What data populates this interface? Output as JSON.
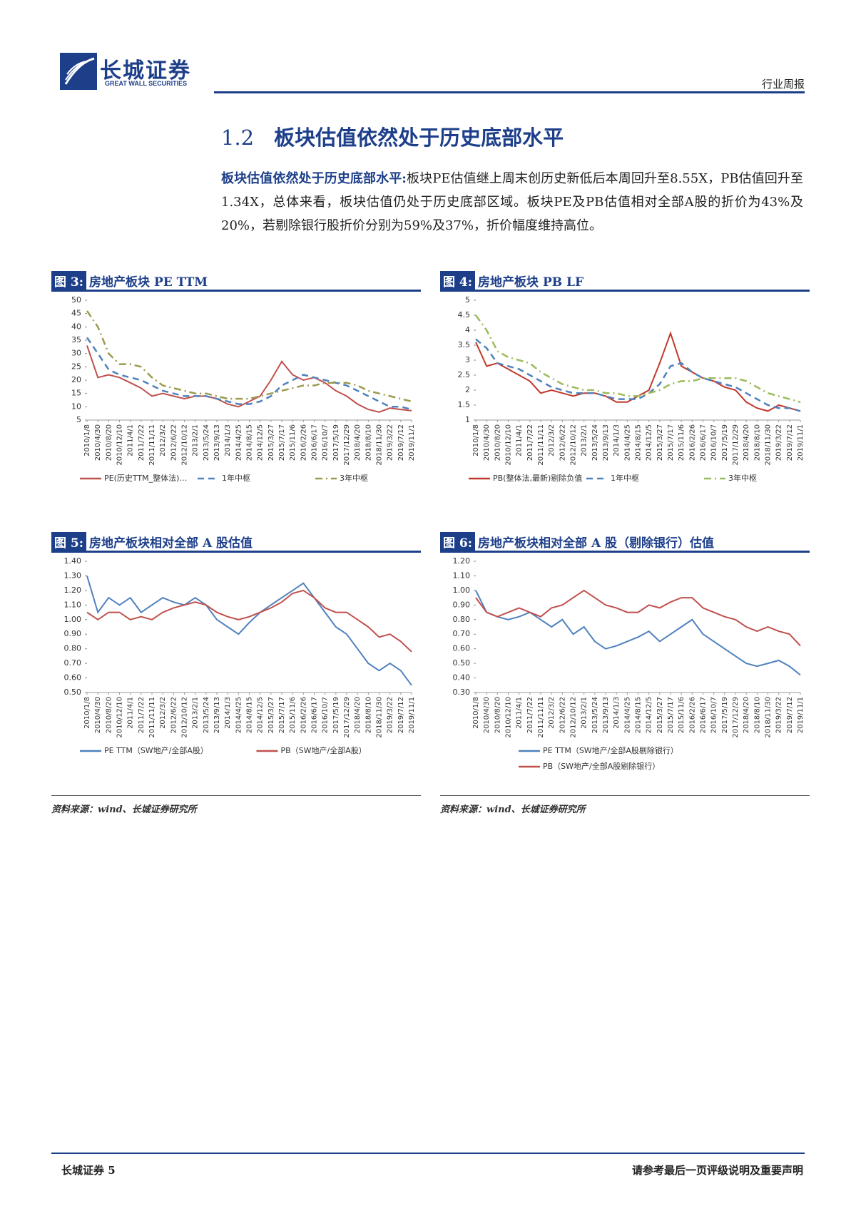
{
  "header": {
    "logo_cn": "长城证券",
    "logo_en": "GREAT WALL SECURITIES",
    "report_type": "行业周报"
  },
  "section": {
    "number": "1.2",
    "title": "板块估值依然处于历史底部水平"
  },
  "paragraph": {
    "lead": "板块估值依然处于历史底部水平:",
    "body": "板块PE估值继上周末创历史新低后本周回升至8.55X，PB估值回升至1.34X，总体来看，板块估值仍处于历史底部区域。板块PE及PB估值相对全部A股的折价为43%及20%，若剔除银行股折价分别为59%及37%，折价幅度维持高位。"
  },
  "chart_data": [
    {
      "type": "line",
      "label": "图 3:",
      "title": "房地产板块 PE TTM",
      "grid": false,
      "legend": "bottom",
      "categories": [
        "2010/1/8",
        "2010/4/30",
        "2010/8/20",
        "2010/12/10",
        "2011/4/1",
        "2011/7/22",
        "2011/11/11",
        "2012/3/2",
        "2012/6/22",
        "2012/10/12",
        "2013/2/1",
        "2013/5/24",
        "2013/9/13",
        "2014/1/3",
        "2014/4/25",
        "2014/8/15",
        "2014/12/5",
        "2015/3/27",
        "2015/7/17",
        "2015/11/6",
        "2016/2/26",
        "2016/6/17",
        "2016/10/7",
        "2017/5/19",
        "2017/12/29",
        "2018/4/20",
        "2018/8/10",
        "2018/11/30",
        "2019/3/22",
        "2019/7/12",
        "2019/11/1"
      ],
      "ylim": [
        5,
        50
      ],
      "yticks": [
        5,
        10,
        15,
        20,
        25,
        30,
        35,
        40,
        45,
        50
      ],
      "series": [
        {
          "name": "PE(历史TTM_整体法)…",
          "color": "#c0504d",
          "style": "solid",
          "values": [
            33,
            21,
            22,
            21,
            19,
            17,
            14,
            15,
            14,
            13,
            14,
            14,
            13,
            11,
            10,
            12,
            14,
            20,
            27,
            22,
            20,
            21,
            19,
            16,
            14,
            11,
            9,
            8,
            9.5,
            9,
            8.5
          ]
        },
        {
          "name": "1年中枢",
          "color": "#4f81bd",
          "style": "dashed",
          "values": [
            36,
            30,
            24,
            22,
            21,
            20,
            18,
            16,
            15,
            14,
            14,
            14,
            13,
            12,
            11,
            11,
            12,
            14,
            18,
            20,
            22,
            21,
            20,
            19,
            18,
            16,
            14,
            12,
            10,
            10,
            9
          ]
        },
        {
          "name": "3年中枢",
          "color": "#9c9b4e",
          "style": "dashdot",
          "values": [
            46,
            40,
            30,
            26,
            26,
            25,
            21,
            18,
            17,
            16,
            15,
            15,
            14,
            13,
            13,
            13,
            14,
            15,
            16,
            17,
            18,
            18,
            19,
            19,
            19,
            18,
            16,
            15,
            14,
            13,
            12
          ]
        }
      ]
    },
    {
      "type": "line",
      "label": "图 4:",
      "title": "房地产板块 PB LF",
      "grid": false,
      "legend": "bottom",
      "categories": [
        "2010/1/8",
        "2010/4/30",
        "2010/8/20",
        "2010/12/10",
        "2011/4/1",
        "2011/7/22",
        "2011/11/11",
        "2012/3/2",
        "2012/6/22",
        "2012/10/12",
        "2013/2/1",
        "2013/5/24",
        "2013/9/13",
        "2014/1/3",
        "2014/4/25",
        "2014/8/15",
        "2014/12/5",
        "2015/3/27",
        "2015/7/17",
        "2015/11/6",
        "2016/2/26",
        "2016/6/17",
        "2016/10/7",
        "2017/5/19",
        "2017/12/29",
        "2018/4/20",
        "2018/8/10",
        "2018/11/30",
        "2019/3/22",
        "2019/7/12",
        "2019/11/1"
      ],
      "ylim": [
        1,
        5
      ],
      "yticks": [
        1,
        1.5,
        2,
        2.5,
        3,
        3.5,
        4,
        4.5,
        5
      ],
      "series": [
        {
          "name": "PB(整体法,最新)剔除负值",
          "color": "#c0392b",
          "style": "solid",
          "values": [
            3.6,
            2.8,
            2.9,
            2.7,
            2.5,
            2.3,
            1.9,
            2.0,
            1.9,
            1.8,
            1.9,
            1.9,
            1.8,
            1.6,
            1.6,
            1.8,
            2.0,
            2.9,
            3.9,
            2.8,
            2.6,
            2.4,
            2.3,
            2.1,
            2.0,
            1.6,
            1.4,
            1.3,
            1.5,
            1.4,
            1.3
          ]
        },
        {
          "name": "1年中枢",
          "color": "#4f81bd",
          "style": "dashed",
          "values": [
            3.7,
            3.4,
            2.9,
            2.8,
            2.7,
            2.5,
            2.3,
            2.1,
            2.0,
            1.9,
            1.9,
            1.9,
            1.8,
            1.7,
            1.7,
            1.7,
            1.9,
            2.2,
            2.8,
            2.9,
            2.6,
            2.4,
            2.3,
            2.2,
            2.1,
            1.9,
            1.7,
            1.5,
            1.4,
            1.4,
            1.3
          ]
        },
        {
          "name": "3年中枢",
          "color": "#9bbb59",
          "style": "dashdot",
          "values": [
            4.5,
            4.0,
            3.3,
            3.1,
            3.0,
            2.9,
            2.6,
            2.4,
            2.2,
            2.1,
            2.0,
            2.0,
            1.9,
            1.9,
            1.8,
            1.8,
            1.9,
            2.0,
            2.2,
            2.3,
            2.3,
            2.4,
            2.4,
            2.4,
            2.4,
            2.3,
            2.1,
            1.9,
            1.8,
            1.7,
            1.6
          ]
        }
      ]
    },
    {
      "type": "line",
      "label": "图 5:",
      "title": "房地产板块相对全部 A 股估值",
      "grid": false,
      "legend": "bottom",
      "categories": [
        "2010/1/8",
        "2010/4/30",
        "2010/8/20",
        "2010/12/10",
        "2011/4/1",
        "2011/7/22",
        "2011/11/11",
        "2012/3/2",
        "2012/6/22",
        "2012/10/12",
        "2013/2/1",
        "2013/5/24",
        "2013/9/13",
        "2014/1/3",
        "2014/4/25",
        "2014/8/15",
        "2014/12/5",
        "2015/3/27",
        "2015/7/17",
        "2015/11/6",
        "2016/2/26",
        "2016/6/17",
        "2016/10/7",
        "2017/5/19",
        "2017/12/29",
        "2018/4/20",
        "2018/8/10",
        "2018/11/30",
        "2019/3/22",
        "2019/7/12",
        "2019/11/1"
      ],
      "ylim": [
        0.5,
        1.4
      ],
      "yticks": [
        {
          "value": 0.5,
          "label": "0.50"
        },
        {
          "value": 0.6,
          "label": "0.60"
        },
        {
          "value": 0.7,
          "label": "0.70"
        },
        {
          "value": 0.8,
          "label": "0.80"
        },
        {
          "value": 0.9,
          "label": "0.90"
        },
        {
          "value": 1.0,
          "label": "1.00"
        },
        {
          "value": 1.1,
          "label": "1.10"
        },
        {
          "value": 1.2,
          "label": "1.20"
        },
        {
          "value": 1.3,
          "label": "1.30"
        },
        {
          "value": 1.4,
          "label": "1.40"
        }
      ],
      "series": [
        {
          "name": "PE TTM（SW地产/全部A股）",
          "color": "#4f81bd",
          "style": "solid",
          "values": [
            1.3,
            1.05,
            1.15,
            1.1,
            1.15,
            1.05,
            1.1,
            1.15,
            1.12,
            1.1,
            1.15,
            1.1,
            1.0,
            0.95,
            0.9,
            0.98,
            1.05,
            1.1,
            1.15,
            1.2,
            1.25,
            1.15,
            1.05,
            0.95,
            0.9,
            0.8,
            0.7,
            0.65,
            0.7,
            0.65,
            0.55
          ]
        },
        {
          "name": "PB（SW地产/全部A股）",
          "color": "#c0504d",
          "style": "solid",
          "values": [
            1.05,
            1.0,
            1.05,
            1.05,
            1.0,
            1.02,
            1.0,
            1.05,
            1.08,
            1.1,
            1.12,
            1.1,
            1.05,
            1.02,
            1.0,
            1.02,
            1.05,
            1.08,
            1.12,
            1.18,
            1.2,
            1.15,
            1.08,
            1.05,
            1.05,
            1.0,
            0.95,
            0.88,
            0.9,
            0.85,
            0.78
          ]
        }
      ]
    },
    {
      "type": "line",
      "label": "图 6:",
      "title": "房地产板块相对全部 A 股（剔除银行）估值",
      "grid": false,
      "legend": "stacked",
      "categories": [
        "2010/1/8",
        "2010/4/30",
        "2010/8/20",
        "2010/12/10",
        "2011/4/1",
        "2011/7/22",
        "2011/11/11",
        "2012/3/2",
        "2012/6/22",
        "2012/10/12",
        "2013/2/1",
        "2013/5/24",
        "2013/9/13",
        "2014/1/3",
        "2014/4/25",
        "2014/8/15",
        "2014/12/5",
        "2015/3/27",
        "2015/7/17",
        "2015/11/6",
        "2016/2/26",
        "2016/6/17",
        "2016/10/7",
        "2017/5/19",
        "2017/12/29",
        "2018/4/20",
        "2018/8/10",
        "2018/11/30",
        "2019/3/22",
        "2019/7/12",
        "2019/11/1"
      ],
      "ylim": [
        0.3,
        1.2
      ],
      "yticks": [
        {
          "value": 0.3,
          "label": "0.30"
        },
        {
          "value": 0.4,
          "label": "0.40"
        },
        {
          "value": 0.5,
          "label": "0.50"
        },
        {
          "value": 0.6,
          "label": "0.60"
        },
        {
          "value": 0.7,
          "label": "0.70"
        },
        {
          "value": 0.8,
          "label": "0.80"
        },
        {
          "value": 0.9,
          "label": "0.90"
        },
        {
          "value": 1.0,
          "label": "1.00"
        },
        {
          "value": 1.1,
          "label": "1.10"
        },
        {
          "value": 1.2,
          "label": "1.20"
        }
      ],
      "series": [
        {
          "name": "PE TTM（SW地产/全部A股剔除银行）",
          "color": "#4f81bd",
          "style": "solid",
          "values": [
            1.0,
            0.85,
            0.82,
            0.8,
            0.82,
            0.85,
            0.8,
            0.75,
            0.8,
            0.7,
            0.75,
            0.65,
            0.6,
            0.62,
            0.65,
            0.68,
            0.72,
            0.65,
            0.7,
            0.75,
            0.8,
            0.7,
            0.65,
            0.6,
            0.55,
            0.5,
            0.48,
            0.5,
            0.52,
            0.48,
            0.42
          ]
        },
        {
          "name": "PB（SW地产/全部A股剔除银行）",
          "color": "#c0504d",
          "style": "solid",
          "values": [
            0.95,
            0.85,
            0.82,
            0.85,
            0.88,
            0.85,
            0.82,
            0.88,
            0.9,
            0.95,
            1.0,
            0.95,
            0.9,
            0.88,
            0.85,
            0.85,
            0.9,
            0.88,
            0.92,
            0.95,
            0.95,
            0.88,
            0.85,
            0.82,
            0.8,
            0.75,
            0.72,
            0.75,
            0.72,
            0.7,
            0.62
          ]
        }
      ]
    }
  ],
  "sources": [
    "资料来源：wind、长城证券研究所",
    "资料来源：wind、长城证券研究所"
  ],
  "footer": {
    "left": "长城证券 5",
    "right": "请参考最后一页评级说明及重要声明"
  }
}
